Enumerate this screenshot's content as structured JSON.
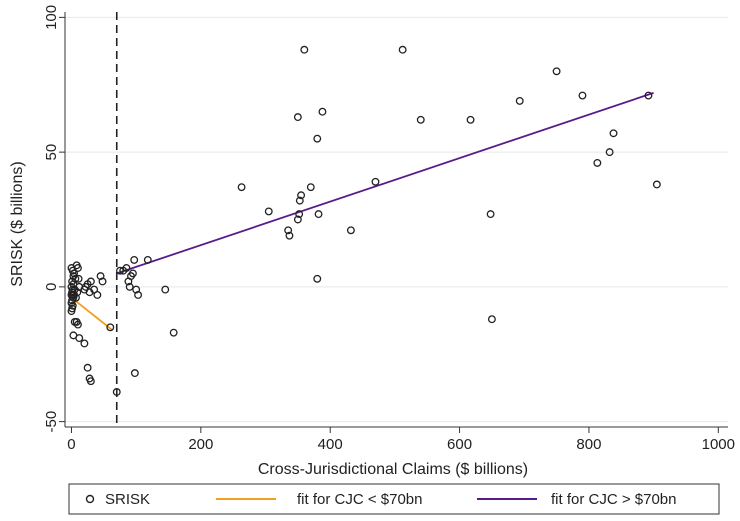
{
  "chart_data": {
    "type": "scatter",
    "xlabel": "Cross-Jurisdictional Claims ($ billions)",
    "ylabel": "SRISK ($ billions)",
    "xlim": [
      -10,
      1015
    ],
    "ylim": [
      -52,
      102
    ],
    "xticks": [
      "0",
      "200",
      "400",
      "600",
      "800",
      "1000"
    ],
    "yticks": [
      "-50",
      "0",
      "50",
      "100"
    ],
    "grid": "horizontal",
    "threshold_line_x": 70,
    "legend_position": "bottom",
    "legend": [
      "SRISK",
      "fit for CJC < $70bn",
      "fit for CJC > $70bn"
    ],
    "colors": {
      "marker": "#222222",
      "fit_low": "#f0a020",
      "fit_high": "#5b1a8b",
      "grid": "#e8e8e8"
    },
    "series": [
      {
        "name": "SRISK",
        "kind": "points",
        "points": [
          [
            0,
            7
          ],
          [
            2,
            6
          ],
          [
            3,
            4
          ],
          [
            1,
            2
          ],
          [
            0,
            0
          ],
          [
            2,
            -1
          ],
          [
            1,
            -2
          ],
          [
            0,
            -3
          ],
          [
            3,
            -4
          ],
          [
            1,
            -5
          ],
          [
            0,
            -6
          ],
          [
            2,
            -7
          ],
          [
            1,
            -8
          ],
          [
            0,
            -9
          ],
          [
            2,
            -3
          ],
          [
            3,
            1
          ],
          [
            4,
            5
          ],
          [
            5,
            -1
          ],
          [
            6,
            3
          ],
          [
            4,
            -3
          ],
          [
            8,
            8
          ],
          [
            10,
            7
          ],
          [
            11,
            3
          ],
          [
            12,
            0
          ],
          [
            9,
            -2
          ],
          [
            7,
            -4
          ],
          [
            5,
            -13
          ],
          [
            8,
            -13
          ],
          [
            10,
            -14
          ],
          [
            3,
            -18
          ],
          [
            12,
            -19
          ],
          [
            20,
            -1
          ],
          [
            22,
            0
          ],
          [
            25,
            1
          ],
          [
            28,
            -2
          ],
          [
            30,
            2
          ],
          [
            35,
            -1
          ],
          [
            40,
            -3
          ],
          [
            45,
            4
          ],
          [
            48,
            2
          ],
          [
            20,
            -21
          ],
          [
            25,
            -30
          ],
          [
            28,
            -34
          ],
          [
            30,
            -35
          ],
          [
            60,
            -15
          ],
          [
            70,
            -39
          ],
          [
            75,
            6
          ],
          [
            80,
            6
          ],
          [
            85,
            7
          ],
          [
            88,
            2
          ],
          [
            90,
            0
          ],
          [
            92,
            4
          ],
          [
            95,
            5
          ],
          [
            97,
            10
          ],
          [
            100,
            -1
          ],
          [
            103,
            -3
          ],
          [
            118,
            10
          ],
          [
            98,
            -32
          ],
          [
            145,
            -1
          ],
          [
            158,
            -17
          ],
          [
            263,
            37
          ],
          [
            305,
            28
          ],
          [
            335,
            21
          ],
          [
            337,
            19
          ],
          [
            350,
            25
          ],
          [
            352,
            27
          ],
          [
            353,
            32
          ],
          [
            355,
            34
          ],
          [
            350,
            63
          ],
          [
            360,
            88
          ],
          [
            370,
            37
          ],
          [
            380,
            55
          ],
          [
            382,
            27
          ],
          [
            380,
            3
          ],
          [
            388,
            65
          ],
          [
            432,
            21
          ],
          [
            470,
            39
          ],
          [
            512,
            88
          ],
          [
            540,
            62
          ],
          [
            617,
            62
          ],
          [
            648,
            27
          ],
          [
            650,
            -12
          ],
          [
            693,
            69
          ],
          [
            750,
            80
          ],
          [
            790,
            71
          ],
          [
            813,
            46
          ],
          [
            832,
            50
          ],
          [
            838,
            57
          ],
          [
            892,
            71
          ],
          [
            905,
            38
          ]
        ]
      },
      {
        "name": "fit for CJC < $70bn",
        "kind": "line",
        "points": [
          [
            0,
            -4
          ],
          [
            63,
            -16
          ]
        ]
      },
      {
        "name": "fit for CJC > $70bn",
        "kind": "line",
        "points": [
          [
            70,
            5
          ],
          [
            900,
            72
          ]
        ]
      }
    ]
  }
}
